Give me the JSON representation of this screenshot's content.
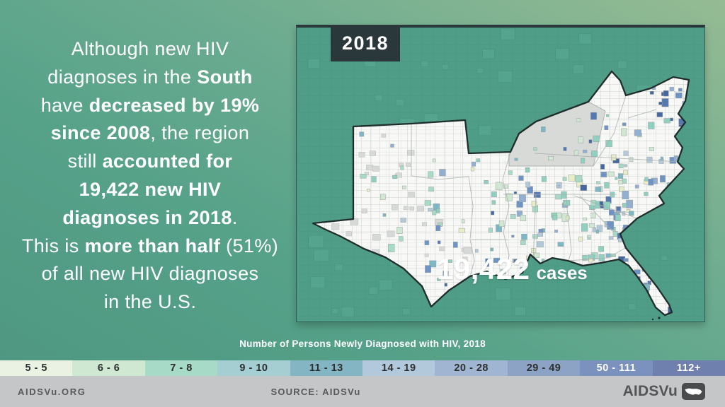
{
  "headline": {
    "lines": [
      {
        "segments": [
          {
            "text": "Although new HIV",
            "bold": false
          }
        ]
      },
      {
        "segments": [
          {
            "text": "diagnoses in the ",
            "bold": false
          },
          {
            "text": "South",
            "bold": true
          }
        ]
      },
      {
        "segments": [
          {
            "text": "have ",
            "bold": false
          },
          {
            "text": "decreased by 19%",
            "bold": true
          }
        ]
      },
      {
        "segments": [
          {
            "text": "since 2008",
            "bold": true
          },
          {
            "text": ", the region",
            "bold": false
          }
        ]
      },
      {
        "segments": [
          {
            "text": "still ",
            "bold": false
          },
          {
            "text": "accounted for",
            "bold": true
          }
        ]
      },
      {
        "segments": [
          {
            "text": "19,422 new HIV",
            "bold": true
          }
        ]
      },
      {
        "segments": [
          {
            "text": "diagnoses in 2018",
            "bold": true
          },
          {
            "text": ".",
            "bold": false
          }
        ]
      },
      {
        "segments": [
          {
            "text": "This is ",
            "bold": false
          },
          {
            "text": "more than half",
            "bold": true
          },
          {
            "text": " (51%)",
            "bold": false
          }
        ]
      },
      {
        "segments": [
          {
            "text": "of all new HIV diagnoses",
            "bold": false
          }
        ]
      },
      {
        "segments": [
          {
            "text": "in the U.S.",
            "bold": false
          }
        ]
      }
    ]
  },
  "map_panel": {
    "year_badge": "2018",
    "cases_value": "19,422",
    "cases_unit": "cases"
  },
  "legend": {
    "title": "Number of Persons Newly Diagnosed with HIV, 2018",
    "bins": [
      {
        "label": "5 - 5",
        "color": "#EAF2E3",
        "text_color": "#2d2f2f"
      },
      {
        "label": "6 - 6",
        "color": "#CFE8D2",
        "text_color": "#2d2f2f"
      },
      {
        "label": "7 - 8",
        "color": "#A7DAC7",
        "text_color": "#2d2f2f"
      },
      {
        "label": "9 - 10",
        "color": "#A4CED2",
        "text_color": "#2d2f2f"
      },
      {
        "label": "11 - 13",
        "color": "#84B5C2",
        "text_color": "#2d2f2f"
      },
      {
        "label": "14 - 19",
        "color": "#B2C8DB",
        "text_color": "#2d2f2f"
      },
      {
        "label": "20 - 28",
        "color": "#A0B5D1",
        "text_color": "#2d2f2f"
      },
      {
        "label": "29 - 49",
        "color": "#8CA3C5",
        "text_color": "#2d2f2f"
      },
      {
        "label": "50 - 111",
        "color": "#7B92BE",
        "text_color": "#ffffff"
      },
      {
        "label": "112+",
        "color": "#6F80AF",
        "text_color": "#ffffff"
      }
    ]
  },
  "footer": {
    "site": "AIDSVu.ORG",
    "source": "SOURCE: AIDSVu",
    "logo_text": "AIDSVu",
    "logo_icon": "us-map-icon"
  }
}
